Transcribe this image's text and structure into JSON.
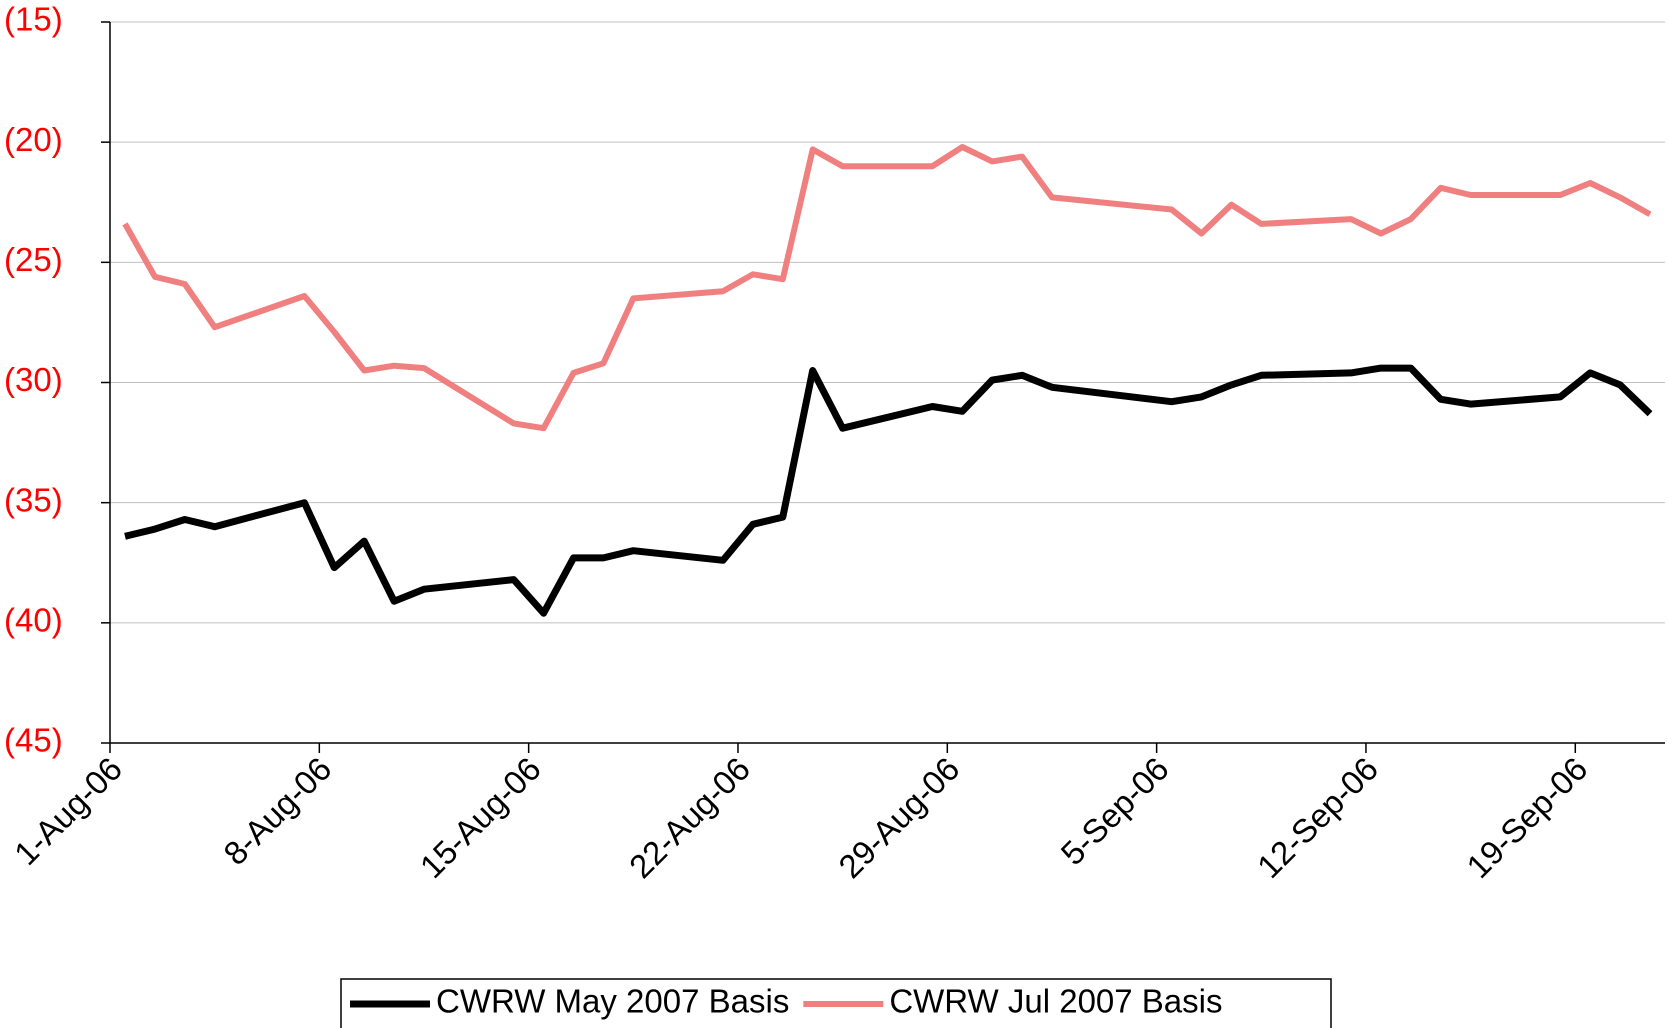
{
  "chart_data": {
    "type": "line",
    "x": [
      "2006-08-01",
      "2006-08-02",
      "2006-08-03",
      "2006-08-04",
      "2006-08-07",
      "2006-08-08",
      "2006-08-09",
      "2006-08-10",
      "2006-08-11",
      "2006-08-14",
      "2006-08-15",
      "2006-08-16",
      "2006-08-17",
      "2006-08-18",
      "2006-08-21",
      "2006-08-22",
      "2006-08-23",
      "2006-08-24",
      "2006-08-25",
      "2006-08-28",
      "2006-08-29",
      "2006-08-30",
      "2006-08-31",
      "2006-09-01",
      "2006-09-05",
      "2006-09-06",
      "2006-09-07",
      "2006-09-08",
      "2006-09-11",
      "2006-09-12",
      "2006-09-13",
      "2006-09-14",
      "2006-09-15",
      "2006-09-18",
      "2006-09-19",
      "2006-09-20",
      "2006-09-21"
    ],
    "series": [
      {
        "name": "CWRW May 2007 Basis",
        "color": "#000000",
        "values": [
          -36.4,
          -36.1,
          -35.7,
          -36.0,
          -35.0,
          -37.7,
          -36.6,
          -39.1,
          -38.6,
          -38.2,
          -39.6,
          -37.3,
          -37.3,
          -37.0,
          -37.4,
          -35.9,
          -35.6,
          -29.5,
          -31.9,
          -31.0,
          -31.2,
          -29.9,
          -29.7,
          -30.2,
          -30.8,
          -30.6,
          -30.1,
          -29.7,
          -29.6,
          -29.4,
          -29.4,
          -30.7,
          -30.9,
          -30.6,
          -29.6,
          -30.1,
          -31.3
        ]
      },
      {
        "name": "CWRW Jul 2007 Basis",
        "color": "#f08080",
        "values": [
          -23.4,
          -25.6,
          -25.9,
          -27.7,
          -26.4,
          -27.9,
          -29.5,
          -29.3,
          -29.4,
          -31.7,
          -31.9,
          -29.6,
          -29.2,
          -26.5,
          -26.2,
          -25.5,
          -25.7,
          -20.3,
          -21.0,
          -21.0,
          -20.2,
          -20.8,
          -20.6,
          -22.3,
          -22.8,
          -23.8,
          -22.6,
          -23.4,
          -23.2,
          -23.8,
          -23.2,
          -21.9,
          -22.2,
          -22.2,
          -21.7,
          -22.3,
          -23.0
        ]
      }
    ],
    "xlim": [
      "2006-08-01",
      "2006-09-22"
    ],
    "xticks": [
      {
        "value": "2006-08-01",
        "label": "1-Aug-06"
      },
      {
        "value": "2006-08-08",
        "label": "8-Aug-06"
      },
      {
        "value": "2006-08-15",
        "label": "15-Aug-06"
      },
      {
        "value": "2006-08-22",
        "label": "22-Aug-06"
      },
      {
        "value": "2006-08-29",
        "label": "29-Aug-06"
      },
      {
        "value": "2006-09-05",
        "label": "5-Sep-06"
      },
      {
        "value": "2006-09-12",
        "label": "12-Sep-06"
      },
      {
        "value": "2006-09-19",
        "label": "19-Sep-06"
      }
    ],
    "ylim": [
      -45,
      -15
    ],
    "yticks": [
      {
        "value": -45,
        "label": "(45)"
      },
      {
        "value": -40,
        "label": "(40)"
      },
      {
        "value": -35,
        "label": "(35)"
      },
      {
        "value": -30,
        "label": "(30)"
      },
      {
        "value": -25,
        "label": "(25)"
      },
      {
        "value": -20,
        "label": "(20)"
      },
      {
        "value": -15,
        "label": "(15)"
      }
    ],
    "ytick_color": "#ff0000",
    "grid": true
  }
}
